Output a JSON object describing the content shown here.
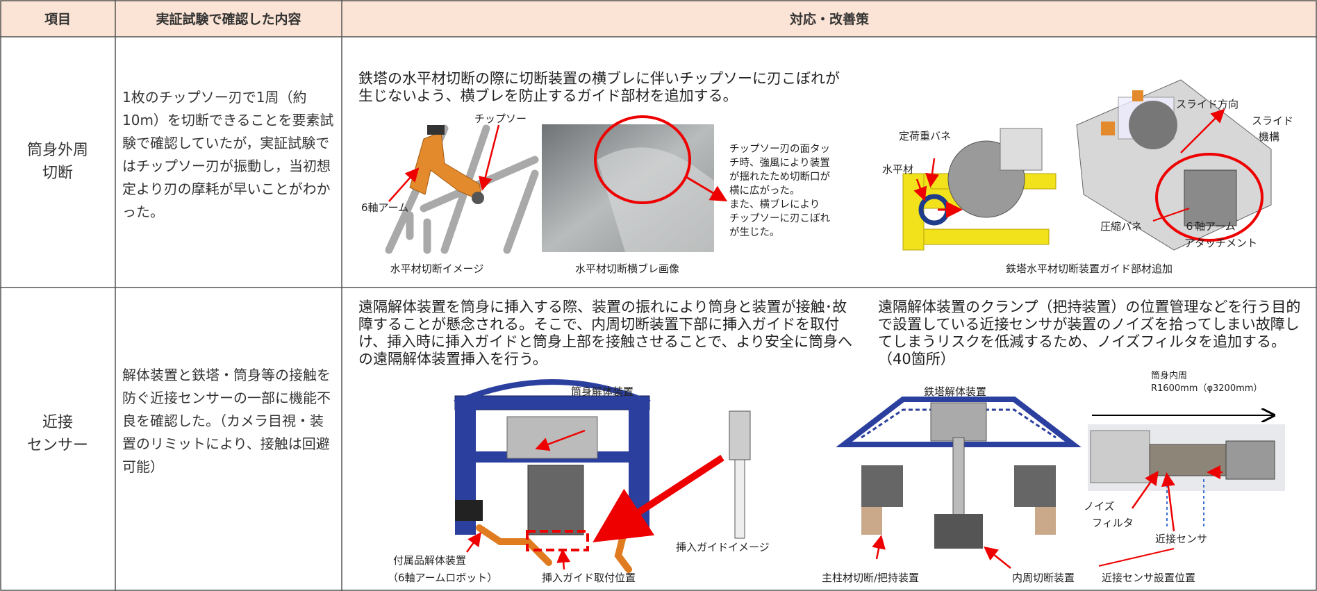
{
  "table": {
    "headers": [
      "項目",
      "実証試験で確認した内容",
      "対応・改善策"
    ],
    "rows": [
      {
        "item": [
          "筒身外周",
          "切断"
        ],
        "finding": "1枚のチップソー刃で1周（約10m）を切断できることを要素試験で確認していたが，実証試験ではチップソー刃が振動し，当初想定より刃の摩耗が早いことがわかった。",
        "description": "鉄塔の水平材切断の際に切断装置の横ブレに伴いチップソーに刃こぼれが生じないよう、横ブレを防止するガイド部材を追加する。",
        "figure_1": {
          "caption": "水平材切断イメージ",
          "labels": [
            "チップソー",
            "6軸アーム"
          ]
        },
        "figure_2": {
          "caption": "水平材切断横ブレ画像",
          "note": [
            "チップソー刃の面タッ",
            "チ時、強風により装置",
            "が揺れたため切断口が",
            "横に広がった。",
            "また、横ブレにより",
            "チップソーに刃こぼれ",
            "が生じた。"
          ]
        },
        "figure_3": {
          "caption": "鉄塔水平材切断装置ガイド部材追加",
          "labels": [
            "定荷重バネ",
            "水平材",
            "スライド方向",
            "スライド",
            "機構",
            "圧縮バネ",
            "６軸アーム",
            "アタッチメント"
          ]
        }
      },
      {
        "item": [
          "近接",
          "センサー"
        ],
        "finding": "解体装置と鉄塔・筒身等の接触を防ぐ近接センサーの一部に機能不良を確認した。（カメラ目視・装置のリミットにより、接触は回避可能）",
        "description_left": "遠隔解体装置を筒身に挿入する際、装置の振れにより筒身と装置が接触･故障することが懸念される。そこで、内周切断装置下部に挿入ガイドを取付け、挿入時に挿入ガイドと筒身上部を接触させることで、より安全に筒身への遠隔解体装置挿入を行う。",
        "description_right": "遠隔解体装置のクランプ（把持装置）の位置管理などを行う目的で設置している近接センサが装置のノイズを拾ってしまい故障してしまうリスクを低減するため、ノイズフィルタを追加する。（40箇所）",
        "figure_left": {
          "labels": [
            "筒身解体装置",
            "付属品解体装置",
            "（6軸アームロボット）",
            "挿入ガイド取付位置",
            "挿入ガイドイメージ"
          ]
        },
        "figure_right": {
          "labels": [
            "鉄塔解体装置",
            "筒身内周",
            "R1600mm（φ3200mm）",
            "ノイズ",
            "フィルタ",
            "近接センサ",
            "主柱材切断/把持装置",
            "内周切断装置",
            "近接センサ設置位置"
          ]
        }
      }
    ]
  }
}
